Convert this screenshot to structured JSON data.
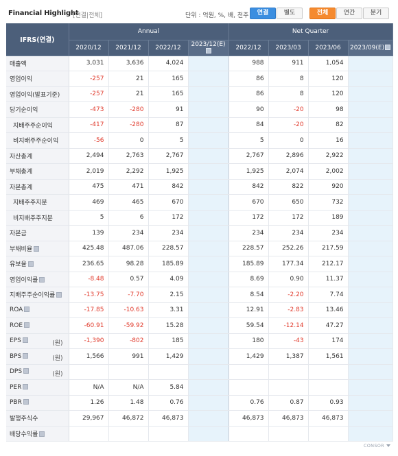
{
  "header": {
    "title": "Financial Highlight",
    "subtitle": "[연결|전체]",
    "unit": "단위 : 억원, %, 배, 천주",
    "toggle1": [
      "연결",
      "별도"
    ],
    "toggle2": [
      "전체",
      "연간",
      "분기"
    ]
  },
  "table": {
    "corner": "IFRS(연결)",
    "groups": [
      "Annual",
      "Net Quarter"
    ],
    "columns": [
      "2020/12",
      "2021/12",
      "2022/12",
      "2023/12(E)",
      "2022/12",
      "2023/03",
      "2023/06",
      "2023/09(E)"
    ],
    "rows": [
      {
        "label": "매출액",
        "values": [
          "3,031",
          "3,636",
          "4,024",
          "",
          "988",
          "911",
          "1,054",
          ""
        ]
      },
      {
        "label": "영업이익",
        "values": [
          "-257",
          "21",
          "165",
          "",
          "86",
          "8",
          "120",
          ""
        ]
      },
      {
        "label": "영업이익(발표기준)",
        "values": [
          "-257",
          "21",
          "165",
          "",
          "86",
          "8",
          "120",
          ""
        ]
      },
      {
        "label": "당기순이익",
        "values": [
          "-473",
          "-280",
          "91",
          "",
          "90",
          "-20",
          "98",
          ""
        ]
      },
      {
        "label": "지배주주순이익",
        "values": [
          "-417",
          "-280",
          "87",
          "",
          "84",
          "-20",
          "82",
          ""
        ]
      },
      {
        "label": "비지배주주순이익",
        "values": [
          "-56",
          "0",
          "5",
          "",
          "5",
          "0",
          "16",
          ""
        ]
      },
      {
        "label": "자산총계",
        "values": [
          "2,494",
          "2,763",
          "2,767",
          "",
          "2,767",
          "2,896",
          "2,922",
          ""
        ]
      },
      {
        "label": "부채총계",
        "values": [
          "2,019",
          "2,292",
          "1,925",
          "",
          "1,925",
          "2,074",
          "2,002",
          ""
        ]
      },
      {
        "label": "자본총계",
        "values": [
          "475",
          "471",
          "842",
          "",
          "842",
          "822",
          "920",
          ""
        ]
      },
      {
        "label": "지배주주지분",
        "values": [
          "469",
          "465",
          "670",
          "",
          "670",
          "650",
          "732",
          ""
        ]
      },
      {
        "label": "비지배주주지분",
        "values": [
          "5",
          "6",
          "172",
          "",
          "172",
          "172",
          "189",
          ""
        ]
      },
      {
        "label": "자본금",
        "values": [
          "139",
          "234",
          "234",
          "",
          "234",
          "234",
          "234",
          ""
        ]
      },
      {
        "label": "부채비율",
        "values": [
          "425.48",
          "487.06",
          "228.57",
          "",
          "228.57",
          "252.26",
          "217.59",
          ""
        ]
      },
      {
        "label": "유보율",
        "values": [
          "236.65",
          "98.28",
          "185.89",
          "",
          "185.89",
          "177.34",
          "212.17",
          ""
        ]
      },
      {
        "label": "영업이익률",
        "values": [
          "-8.48",
          "0.57",
          "4.09",
          "",
          "8.69",
          "0.90",
          "11.37",
          ""
        ]
      },
      {
        "label": "지배주주순이익률",
        "values": [
          "-13.75",
          "-7.70",
          "2.15",
          "",
          "8.54",
          "-2.20",
          "7.74",
          ""
        ]
      },
      {
        "label": "ROA",
        "values": [
          "-17.85",
          "-10.63",
          "3.31",
          "",
          "12.91",
          "-2.83",
          "13.46",
          ""
        ]
      },
      {
        "label": "ROE",
        "values": [
          "-60.91",
          "-59.92",
          "15.28",
          "",
          "59.54",
          "-12.14",
          "47.27",
          ""
        ]
      },
      {
        "label": "EPS",
        "unit": "(원)",
        "values": [
          "-1,390",
          "-802",
          "185",
          "",
          "180",
          "-43",
          "174",
          ""
        ]
      },
      {
        "label": "BPS",
        "unit": "(원)",
        "values": [
          "1,566",
          "991",
          "1,429",
          "",
          "1,429",
          "1,387",
          "1,561",
          ""
        ]
      },
      {
        "label": "DPS",
        "unit": "(원)",
        "values": [
          "",
          "",
          "",
          "",
          "",
          "",
          "",
          ""
        ]
      },
      {
        "label": "PER",
        "values": [
          "N/A",
          "N/A",
          "5.84",
          "",
          "",
          "",
          "",
          ""
        ]
      },
      {
        "label": "PBR",
        "values": [
          "1.26",
          "1.48",
          "0.76",
          "",
          "0.76",
          "0.87",
          "0.93",
          ""
        ]
      },
      {
        "label": "발행주식수",
        "values": [
          "29,967",
          "46,872",
          "46,873",
          "",
          "46,873",
          "46,873",
          "46,873",
          ""
        ]
      },
      {
        "label": "배당수익률",
        "values": [
          "",
          "",
          "",
          "",
          "",
          "",
          "",
          ""
        ]
      }
    ]
  },
  "footer": {
    "mark": "CONSOR"
  }
}
